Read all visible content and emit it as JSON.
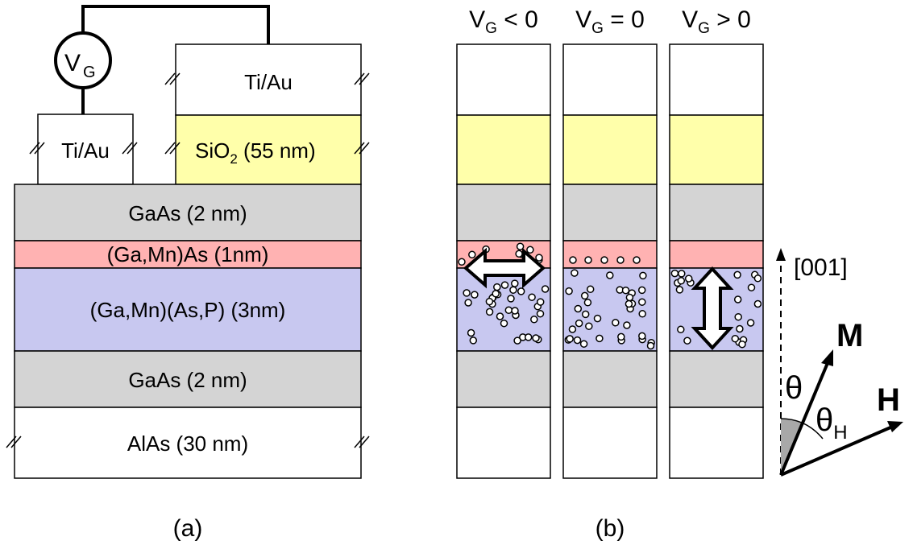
{
  "panel_a": {
    "voltage_symbol": "V",
    "voltage_subscript": "G",
    "contact_left": "Ti/Au",
    "gate_contact": "Ti/Au",
    "oxide": {
      "main": "SiO",
      "sub": "2",
      "rest": " (55 nm)"
    },
    "layers": {
      "gaas_top": "GaAs (2 nm)",
      "gamnas": "(Ga,Mn)As (1nm)",
      "gamnasp": "(Ga,Mn)(As,P) (3nm)",
      "gaas_bottom": "GaAs (2 nm)",
      "alas": "AlAs (30 nm)"
    },
    "caption": "(a)"
  },
  "panel_b": {
    "columns": [
      {
        "v": "V",
        "sub": "G",
        "rel": " < 0"
      },
      {
        "v": "V",
        "sub": "G",
        "rel": " = 0"
      },
      {
        "v": "V",
        "sub": "G",
        "rel": " > 0"
      }
    ],
    "direction": "[001]",
    "magnetization": "M",
    "field": "H",
    "theta": "θ",
    "theta_h": "θ",
    "theta_h_sub": "H",
    "caption": "(b)"
  },
  "colors": {
    "oxide": "#ffffaa",
    "gaas": "#d4d4d4",
    "gamnas": "#ffb2b2",
    "gamnasp": "#c8c8f0"
  }
}
